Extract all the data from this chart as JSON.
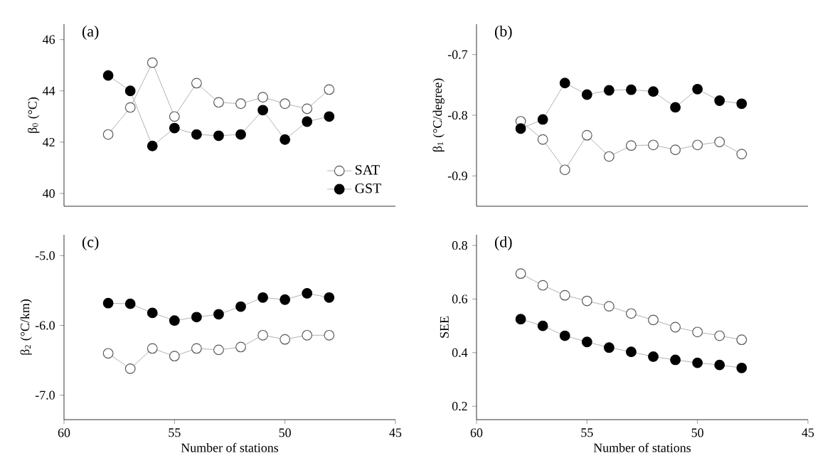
{
  "chart_data": [
    {
      "type": "line",
      "title": "(a)",
      "ylabel": "β$_{0}$ (°C)",
      "x": [
        58,
        57,
        56,
        55,
        54,
        53,
        52,
        51,
        50,
        49,
        48
      ],
      "xlim": [
        60,
        45
      ],
      "ylim": [
        39.5,
        46.6
      ],
      "yticks": [
        40,
        42,
        44,
        46
      ],
      "tick_labels": "y",
      "marker": "circle",
      "line_style": "solid",
      "legend": "bottom right",
      "series": [
        {
          "name": "SAT",
          "color": "#ffffff",
          "values": [
            42.3,
            43.35,
            45.1,
            43.0,
            44.3,
            43.55,
            43.5,
            43.75,
            43.5,
            43.3,
            44.05
          ]
        },
        {
          "name": "GST",
          "color": "#000000",
          "values": [
            44.6,
            44.0,
            41.85,
            42.55,
            42.3,
            42.25,
            42.3,
            43.25,
            42.1,
            42.8,
            43.0
          ]
        }
      ]
    },
    {
      "type": "line",
      "title": "(b)",
      "ylabel": "β$_{1}$ (°C/degree)",
      "x": [
        58,
        57,
        56,
        55,
        54,
        53,
        52,
        51,
        50,
        49,
        48
      ],
      "xlim": [
        60,
        45
      ],
      "ylim": [
        -0.95,
        -0.65
      ],
      "yticks": [
        -0.9,
        -0.8,
        -0.7
      ],
      "tick_labels": "y",
      "marker": "circle",
      "line_style": "solid",
      "series": [
        {
          "color": "#ffffff",
          "values": [
            -0.81,
            -0.84,
            -0.89,
            -0.833,
            -0.868,
            -0.85,
            -0.849,
            -0.857,
            -0.849,
            -0.844,
            -0.864
          ]
        },
        {
          "color": "#000000",
          "values": [
            -0.822,
            -0.807,
            -0.747,
            -0.766,
            -0.759,
            -0.758,
            -0.761,
            -0.787,
            -0.757,
            -0.776,
            -0.781
          ]
        }
      ]
    },
    {
      "type": "line",
      "title": "(c)",
      "xlabel": "Number of stations",
      "ylabel": "β$_{2}$ (°C/km)",
      "x": [
        58,
        57,
        56,
        55,
        54,
        53,
        52,
        51,
        50,
        49,
        48
      ],
      "xlim": [
        60,
        45
      ],
      "xticks": [
        60,
        55,
        50,
        45
      ],
      "ylim": [
        -7.35,
        -4.7
      ],
      "yticks": [
        {
          "value": -7,
          "label": "-7.0"
        },
        {
          "value": -6,
          "label": "-6.0"
        },
        {
          "value": -5,
          "label": "-5.0"
        }
      ],
      "marker": "circle",
      "line_style": "solid",
      "series": [
        {
          "color": "#ffffff",
          "values": [
            -6.4,
            -6.62,
            -6.33,
            -6.44,
            -6.33,
            -6.35,
            -6.31,
            -6.14,
            -6.2,
            -6.14,
            -6.14
          ]
        },
        {
          "color": "#000000",
          "values": [
            -5.68,
            -5.69,
            -5.82,
            -5.93,
            -5.88,
            -5.84,
            -5.73,
            -5.6,
            -5.63,
            -5.54,
            -5.6
          ]
        }
      ]
    },
    {
      "type": "line",
      "title": "(d)",
      "xlabel": "Number of stations",
      "ylabel": "SEE",
      "x": [
        58,
        57,
        56,
        55,
        54,
        53,
        52,
        51,
        50,
        49,
        48
      ],
      "xlim": [
        60,
        45
      ],
      "xticks": [
        60,
        55,
        50,
        45
      ],
      "ylim": [
        0.15,
        0.84
      ],
      "yticks": [
        0.2,
        0.4,
        0.6,
        0.8
      ],
      "marker": "circle",
      "line_style": "solid",
      "series": [
        {
          "color": "#ffffff",
          "values": [
            0.695,
            0.651,
            0.614,
            0.593,
            0.573,
            0.546,
            0.522,
            0.495,
            0.477,
            0.463,
            0.448
          ]
        },
        {
          "color": "#000000",
          "values": [
            0.525,
            0.5,
            0.463,
            0.44,
            0.419,
            0.403,
            0.385,
            0.373,
            0.362,
            0.354,
            0.343
          ]
        }
      ]
    }
  ]
}
